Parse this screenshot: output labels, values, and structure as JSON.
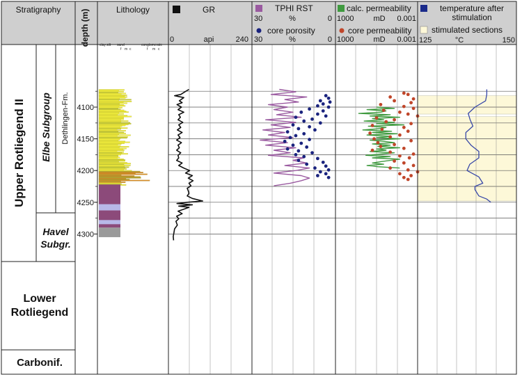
{
  "colors": {
    "header_bg": "#cfcfcf",
    "gr": "#111111",
    "tphi": "#9a5aa0",
    "core_porosity": "#1a237e",
    "calc_perm": "#3f9a3f",
    "core_perm": "#c0462a",
    "temperature": "#3848a8",
    "stimulated": "#fdf8d8",
    "sand": "#f2ee3c",
    "conglomerate": "#d98c28",
    "shale": "#8c4a7a",
    "carbonif": "#9a9a9a"
  },
  "headers": {
    "stratigraphy": "Stratigraphy",
    "depth": "depth (m)",
    "lithology": "Lithology",
    "litho_scale": [
      "clay",
      "silt",
      "sand",
      "f",
      "m",
      "c",
      "conglomerate",
      "f",
      "m",
      "c"
    ],
    "gr": {
      "name": "GR",
      "min": "0",
      "unit": "api",
      "max": "240"
    },
    "tphi": {
      "name": "TPHI RST",
      "left": "30",
      "unit": "%",
      "right": "0"
    },
    "core_porosity": {
      "name": "core porosity",
      "left": "30",
      "unit": "%",
      "right": "0"
    },
    "calc_perm": {
      "name": "calc. permeability",
      "left": "1000",
      "unit": "mD",
      "right": "0.001"
    },
    "core_perm": {
      "name": "core permeability",
      "left": "1000",
      "unit": "mD",
      "right": "0.001"
    },
    "temperature": {
      "name": "temperature after stimulation",
      "line1": "temperature after",
      "line2": "stimulation"
    },
    "stimulated": {
      "name": "stimulated sections"
    },
    "temp_scale": {
      "left": "125",
      "unit": "°C",
      "right": "150"
    }
  },
  "stratigraphy": {
    "upper": "Upper Rotliegend II",
    "elbe": "Elbe Subgroup",
    "dethlingen": "Dethlingen-Fm.",
    "havel1": "Havel",
    "havel2": "Subgr.",
    "lower1": "Lower",
    "lower2": "Rotliegend",
    "carbonif": "Carbonif."
  },
  "chart_data": {
    "type": "line",
    "depth_ticks": [
      "4100",
      "4150",
      "4200",
      "4250",
      "4300"
    ],
    "depth_range": [
      4072,
      4315
    ],
    "gr_range": [
      0,
      240
    ],
    "porosity_range": [
      30,
      0
    ],
    "permeability_range": [
      1000,
      0.001
    ],
    "permeability_scale": "log",
    "temperature_range": [
      125,
      150
    ],
    "stimulated_sections": [
      [
        4082,
        4111
      ],
      [
        4115,
        4248
      ]
    ],
    "temperature": {
      "depth": [
        4072,
        4080,
        4090,
        4100,
        4110,
        4120,
        4130,
        4140,
        4150,
        4160,
        4170,
        4180,
        4190,
        4200,
        4210,
        4220,
        4225,
        4230,
        4240,
        4245,
        4250
      ],
      "value": [
        142.5,
        142.5,
        142.2,
        139.5,
        137.8,
        138.3,
        139,
        137.2,
        137.2,
        138.5,
        140.5,
        140.5,
        138.2,
        137.5,
        140.5,
        141.5,
        139.5,
        139.5,
        140.5,
        142.5,
        143.5
      ]
    },
    "gr": {
      "depth": [
        4072,
        4076,
        4080,
        4082,
        4085,
        4090,
        4093,
        4096,
        4100,
        4104,
        4108,
        4112,
        4116,
        4120,
        4124,
        4128,
        4132,
        4136,
        4140,
        4144,
        4148,
        4152,
        4156,
        4160,
        4164,
        4168,
        4172,
        4176,
        4180,
        4184,
        4188,
        4192,
        4196,
        4200,
        4204,
        4208,
        4212,
        4216,
        4220,
        4224,
        4228,
        4232,
        4236,
        4240,
        4244,
        4248,
        4250,
        4252,
        4254,
        4256,
        4258,
        4260,
        4264,
        4268,
        4272,
        4276,
        4280,
        4286,
        4292,
        4298,
        4304,
        4310
      ],
      "value": [
        60,
        48,
        36,
        18,
        45,
        32,
        40,
        25,
        38,
        28,
        45,
        30,
        35,
        28,
        42,
        30,
        36,
        26,
        40,
        28,
        34,
        24,
        38,
        28,
        32,
        24,
        36,
        28,
        30,
        24,
        40,
        30,
        45,
        62,
        50,
        70,
        58,
        72,
        60,
        66,
        55,
        58,
        60,
        55,
        70,
        100,
        55,
        25,
        70,
        30,
        60,
        50,
        28,
        40,
        24,
        30,
        22,
        26,
        18,
        16,
        14,
        15
      ]
    },
    "tphi": {
      "depth": [
        4072,
        4076,
        4080,
        4084,
        4088,
        4092,
        4096,
        4100,
        4104,
        4108,
        4112,
        4116,
        4120,
        4124,
        4128,
        4132,
        4136,
        4140,
        4144,
        4148,
        4152,
        4156,
        4160,
        4164,
        4168,
        4172,
        4176,
        4180,
        4184,
        4188,
        4192,
        4196,
        4200,
        4204,
        4208,
        4212,
        4216,
        4220,
        4224
      ],
      "value": [
        20,
        14,
        23,
        10,
        18,
        13,
        24,
        17,
        22,
        15,
        21,
        12,
        25,
        14,
        23,
        16,
        26,
        18,
        24,
        15,
        27,
        17,
        25,
        14,
        22,
        16,
        24,
        11,
        15,
        10,
        18,
        9,
        14,
        22,
        12,
        9,
        12,
        16,
        22
      ]
    },
    "core_porosity": {
      "depth": [
        4082,
        4086,
        4090,
        4092,
        4095,
        4098,
        4100,
        4103,
        4106,
        4108,
        4111,
        4114,
        4116,
        4119,
        4122,
        4125,
        4128,
        4131,
        4134,
        4136,
        4139,
        4142,
        4145,
        4148,
        4151,
        4154,
        4157,
        4160,
        4163,
        4166,
        4169,
        4172,
        4175,
        4178,
        4181,
        4184,
        4187,
        4190,
        4193,
        4196,
        4199,
        4202,
        4205,
        4208,
        4211
      ],
      "value": [
        3,
        2,
        5,
        1.5,
        4,
        6,
        2,
        9,
        4,
        12,
        6,
        3,
        14,
        8,
        11,
        5,
        15,
        9,
        13,
        7,
        17,
        11,
        14,
        16,
        9,
        18,
        12,
        15,
        10,
        17,
        13,
        8,
        14,
        11,
        6,
        13,
        4,
        10,
        3,
        7,
        2,
        5,
        3,
        6,
        2
      ]
    },
    "calc_perm": {
      "depth": [
        4100,
        4102,
        4104,
        4106,
        4108,
        4110,
        4112,
        4114,
        4116,
        4118,
        4120,
        4122,
        4124,
        4126,
        4128,
        4130,
        4132,
        4134,
        4136,
        4138,
        4140,
        4142,
        4144,
        4146,
        4148,
        4150,
        4152,
        4154,
        4156,
        4158,
        4160,
        4162,
        4164,
        4166,
        4168,
        4170,
        4172,
        4174,
        4176,
        4178,
        4180,
        4182,
        4184,
        4186,
        4188,
        4190,
        4192,
        4194,
        4196
      ],
      "value": [
        1,
        0.05,
        5,
        0.2,
        0.5,
        20,
        0.1,
        3,
        0.02,
        2,
        0.3,
        8,
        0.05,
        1,
        0.01,
        4,
        0.2,
        0.6,
        10,
        0.08,
        2,
        0.03,
        5,
        0.1,
        1,
        0.02,
        3,
        0.3,
        0.05,
        2,
        0.1,
        0.8,
        0.02,
        1,
        0.2,
        3,
        0.05,
        0.5,
        6,
        0.1,
        2,
        0.02,
        0.1,
        0.5,
        2,
        0.3,
        5,
        0.8,
        0.02
      ]
    },
    "core_perm": {
      "depth": [
        4078,
        4080,
        4084,
        4087,
        4090,
        4093,
        4096,
        4099,
        4102,
        4105,
        4108,
        4111,
        4114,
        4117,
        4120,
        4123,
        4126,
        4129,
        4132,
        4135,
        4138,
        4141,
        4144,
        4147,
        4150,
        4153,
        4156,
        4159,
        4162,
        4165,
        4168,
        4171,
        4174,
        4177,
        4180,
        4185,
        4188,
        4192,
        4196,
        4199,
        4202,
        4205,
        4208,
        4211,
        4214
      ],
      "value": [
        0.01,
        0.005,
        0.1,
        0.002,
        0.05,
        0.003,
        0.5,
        0.01,
        0.002,
        0.3,
        0.02,
        0.005,
        0.001,
        1,
        0.05,
        0.2,
        0.003,
        2,
        0.01,
        0.4,
        0.005,
        3,
        0.02,
        0.1,
        1.5,
        0.003,
        0.8,
        0.05,
        0.5,
        0.01,
        2,
        0.1,
        0.002,
        0.02,
        0.004,
        0.05,
        0.01,
        0.002,
        0.1,
        0.005,
        0.001,
        0.02,
        0.003,
        0.01,
        0.005
      ]
    }
  }
}
